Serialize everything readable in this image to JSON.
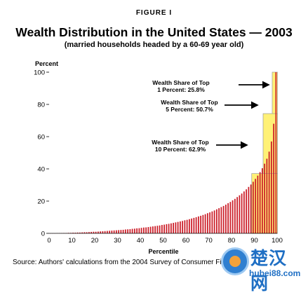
{
  "figure_label": "FIGURE I",
  "chart_data": {
    "type": "bar",
    "title": "Wealth Distribution in the United States — 2003",
    "subtitle": "(married households headed by a 60-69 year old)",
    "ylabel": "Percent",
    "xlabel": "Percentile",
    "xlim": [
      0,
      100
    ],
    "ylim": [
      0,
      100
    ],
    "x_ticks": [
      "0",
      "10",
      "20",
      "30",
      "40",
      "50",
      "60",
      "70",
      "80",
      "90",
      "100"
    ],
    "y_ticks": [
      "0",
      "20",
      "40",
      "60",
      "80",
      "100"
    ],
    "grid": false,
    "colors": {
      "bars": "#cc1f2a",
      "highlight": "#fff176",
      "box": "#999999"
    },
    "x": [
      1,
      2,
      3,
      4,
      5,
      6,
      7,
      8,
      9,
      10,
      11,
      12,
      13,
      14,
      15,
      16,
      17,
      18,
      19,
      20,
      21,
      22,
      23,
      24,
      25,
      26,
      27,
      28,
      29,
      30,
      31,
      32,
      33,
      34,
      35,
      36,
      37,
      38,
      39,
      40,
      41,
      42,
      43,
      44,
      45,
      46,
      47,
      48,
      49,
      50,
      51,
      52,
      53,
      54,
      55,
      56,
      57,
      58,
      59,
      60,
      61,
      62,
      63,
      64,
      65,
      66,
      67,
      68,
      69,
      70,
      71,
      72,
      73,
      74,
      75,
      76,
      77,
      78,
      79,
      80,
      81,
      82,
      83,
      84,
      85,
      86,
      87,
      88,
      89,
      90,
      91,
      92,
      93,
      94,
      95,
      96,
      97,
      98,
      99,
      100
    ],
    "values": [
      0.0,
      0.0,
      0.0,
      0.1,
      0.1,
      0.1,
      0.2,
      0.2,
      0.3,
      0.3,
      0.4,
      0.4,
      0.5,
      0.5,
      0.6,
      0.7,
      0.7,
      0.8,
      0.9,
      1.0,
      1.0,
      1.1,
      1.2,
      1.3,
      1.4,
      1.5,
      1.6,
      1.7,
      1.8,
      1.9,
      2.0,
      2.1,
      2.2,
      2.4,
      2.5,
      2.6,
      2.8,
      2.9,
      3.1,
      3.2,
      3.4,
      3.6,
      3.7,
      3.9,
      4.1,
      4.3,
      4.5,
      4.7,
      4.9,
      5.2,
      5.4,
      5.7,
      5.9,
      6.2,
      6.5,
      6.8,
      7.1,
      7.4,
      7.7,
      8.1,
      8.4,
      8.8,
      9.2,
      9.6,
      10.0,
      10.5,
      10.9,
      11.4,
      11.9,
      12.5,
      13.0,
      13.6,
      14.2,
      14.9,
      15.6,
      16.3,
      17.0,
      17.8,
      18.7,
      19.5,
      20.5,
      21.4,
      22.5,
      23.6,
      24.7,
      26.0,
      27.3,
      28.8,
      30.3,
      32.0,
      33.8,
      35.8,
      38.0,
      40.4,
      43.2,
      46.3,
      50.7,
      57.0,
      68.0,
      100.0
    ],
    "highlights": [
      {
        "label": "Wealth Share of Top 1 Percent: 25.8%",
        "threshold": 99,
        "top": 100.0
      },
      {
        "label": "Wealth Share of Top 5 Percent: 50.7%",
        "threshold": 95,
        "top": 74.3
      },
      {
        "label": "Wealth Share of Top 10 Percent: 62.9%",
        "threshold": 90,
        "top": 37.1
      }
    ]
  },
  "source": "Source: Authors' calculations from the 2004 Survey of Consumer Finances.",
  "watermark": {
    "chinese": "楚汉网",
    "url": "hubei88.com"
  }
}
